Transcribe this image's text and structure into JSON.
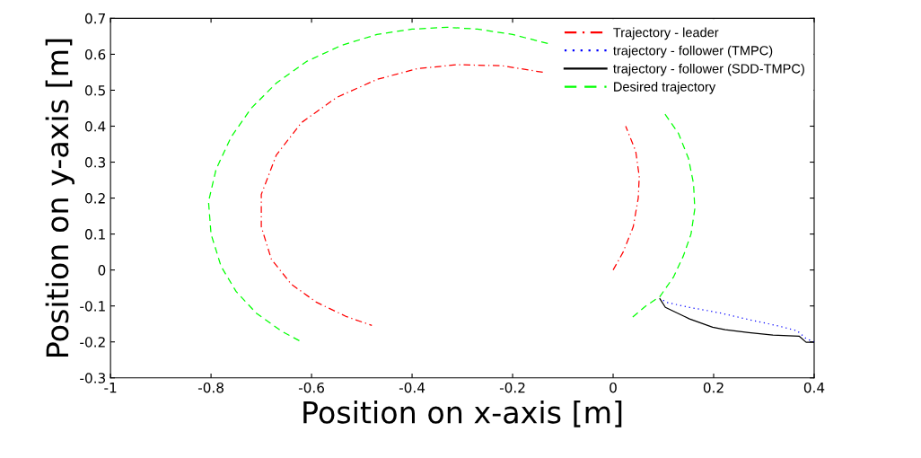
{
  "chart_data": {
    "type": "line",
    "xlabel": "Position on x-axis [m]",
    "ylabel": "Position on y-axis [m]",
    "xlim": [
      -1,
      0.4
    ],
    "ylim": [
      -0.3,
      0.7
    ],
    "xticks": [
      -1,
      -0.8,
      -0.6,
      -0.4,
      -0.2,
      0,
      0.2,
      0.4
    ],
    "yticks": [
      -0.3,
      -0.2,
      -0.1,
      0,
      0.1,
      0.2,
      0.3,
      0.4,
      0.5,
      0.6,
      0.7
    ],
    "grid": false,
    "legend": "top right",
    "series": [
      {
        "name": "Trajectory - leader",
        "color": "#ff0000",
        "line_style": "dashdot",
        "x": [
          0,
          0.02,
          0.04,
          0.05,
          0.052,
          0.045,
          0.025,
          -0.015,
          -0.07,
          -0.14,
          -0.22,
          -0.31,
          -0.39,
          -0.47,
          -0.55,
          -0.62,
          -0.67,
          -0.7,
          -0.7,
          -0.68,
          -0.64,
          -0.59,
          -0.53,
          -0.48
        ],
        "values": [
          0,
          0.05,
          0.12,
          0.2,
          0.26,
          0.33,
          0.4,
          null,
          null,
          0.55,
          0.568,
          0.571,
          0.56,
          0.53,
          0.48,
          0.41,
          0.32,
          0.21,
          0.12,
          0.03,
          -0.04,
          -0.09,
          -0.13,
          -0.154
        ]
      },
      {
        "name": "trajectory - follower (TMPC)",
        "color": "#0000ff",
        "line_style": "dotted",
        "x": [
          0.4,
          0.384,
          0.366,
          0.33,
          0.27,
          0.211,
          0.152,
          0.109,
          0.095
        ],
        "values": [
          -0.2,
          -0.191,
          -0.169,
          -0.156,
          -0.138,
          -0.119,
          -0.104,
          -0.091,
          -0.081
        ]
      },
      {
        "name": "trajectory - follower (SDD-TMPC)",
        "color": "#000000",
        "line_style": "solid",
        "x": [
          0.4,
          0.384,
          0.37,
          0.318,
          0.27,
          0.223,
          0.198,
          0.152,
          0.104,
          0.093
        ],
        "values": [
          -0.201,
          -0.201,
          -0.184,
          -0.181,
          -0.174,
          -0.166,
          -0.159,
          -0.136,
          -0.104,
          -0.08
        ]
      },
      {
        "name": "Desired trajectory",
        "color": "#00ff00",
        "line_style": "dashed",
        "x": [
          0.039,
          0.065,
          0.093,
          0.12,
          0.14,
          0.155,
          0.1625,
          0.16,
          0.15,
          0.13,
          0.1,
          0.06,
          0.01,
          -0.06,
          -0.13,
          -0.2,
          -0.27,
          -0.33,
          -0.4,
          -0.47,
          -0.54,
          -0.61,
          -0.67,
          -0.72,
          -0.76,
          -0.79,
          -0.805,
          -0.8,
          -0.78,
          -0.75,
          -0.71,
          -0.66,
          -0.62
        ],
        "values": [
          -0.131,
          -0.1,
          -0.074,
          -0.02,
          0.04,
          0.1,
          0.17,
          0.24,
          0.31,
          0.38,
          0.44,
          null,
          null,
          null,
          0.63,
          0.655,
          0.67,
          0.675,
          0.67,
          0.655,
          0.625,
          0.58,
          0.52,
          0.45,
          0.37,
          0.28,
          0.19,
          0.1,
          0.01,
          -0.06,
          -0.12,
          -0.17,
          -0.2
        ]
      }
    ]
  }
}
